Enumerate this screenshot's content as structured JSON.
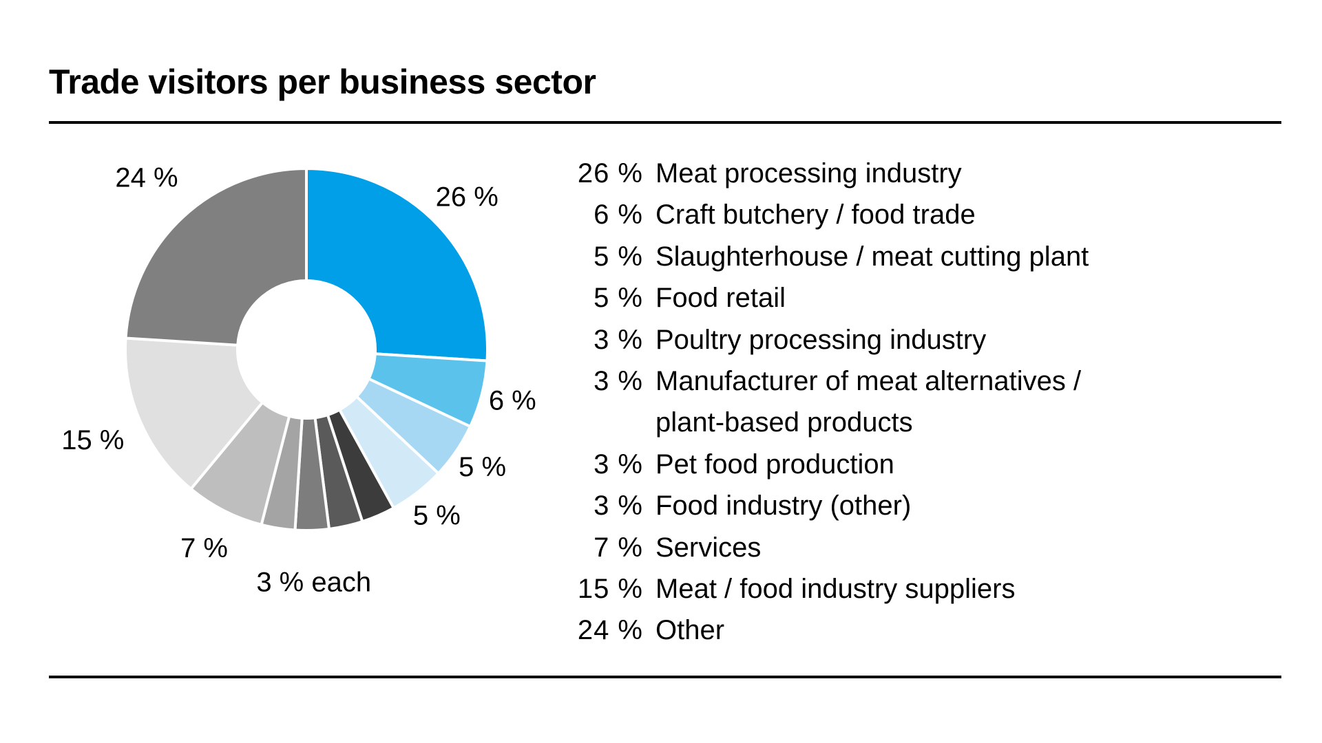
{
  "chart_data": {
    "type": "pie",
    "variant": "donut",
    "title": "Trade visitors per business sector",
    "colors": {
      "primary": "#009fe8",
      "slices": [
        "#009fe8",
        "#5bc2ec",
        "#a6d8f3",
        "#d2e9f8",
        "#3c3c3c",
        "#5a5a5a",
        "#7d7d7d",
        "#a4a4a4",
        "#bebebe",
        "#e0e0e0",
        "#808080"
      ]
    },
    "slices": [
      {
        "label": "Meat processing industry",
        "value": 26
      },
      {
        "label": "Craft butchery / food trade",
        "value": 6
      },
      {
        "label": "Slaughterhouse / meat cutting plant",
        "value": 5
      },
      {
        "label": "Food retail",
        "value": 5
      },
      {
        "label": "Poultry processing industry",
        "value": 3
      },
      {
        "label": "Manufacturer of meat alternatives / plant-based products",
        "value": 3
      },
      {
        "label": "Pet food production",
        "value": 3
      },
      {
        "label": "Food industry (other)",
        "value": 3
      },
      {
        "label": "Services",
        "value": 7
      },
      {
        "label": "Meat / food industry suppliers",
        "value": 15
      },
      {
        "label": "Other",
        "value": 24
      }
    ],
    "data_labels": [
      {
        "text": "26 %",
        "slice": 0
      },
      {
        "text": "6 %",
        "slice": 1
      },
      {
        "text": "5 %",
        "slice": 2
      },
      {
        "text": "5 %",
        "slice": 3
      },
      {
        "text": "3 % each",
        "slice": 6
      },
      {
        "text": "7 %",
        "slice": 8
      },
      {
        "text": "15 %",
        "slice": 9
      },
      {
        "text": "24 %",
        "slice": 10
      }
    ],
    "legend": {
      "position": "right",
      "entries": [
        {
          "pct": "26 %",
          "label": "Meat processing industry"
        },
        {
          "pct": "6 %",
          "label": "Craft butchery / food trade"
        },
        {
          "pct": "5 %",
          "label": "Slaughterhouse / meat cutting plant"
        },
        {
          "pct": "5 %",
          "label": "Food retail"
        },
        {
          "pct": "3 %",
          "label": "Poultry processing industry"
        },
        {
          "pct": "3 %",
          "label": "Manufacturer of meat alternatives /"
        },
        {
          "pct": "",
          "label": "plant-based products"
        },
        {
          "pct": "3 %",
          "label": "Pet food production"
        },
        {
          "pct": "3 %",
          "label": "Food industry (other)"
        },
        {
          "pct": "7 %",
          "label": "Services"
        },
        {
          "pct": "15 %",
          "label": "Meat / food industry suppliers"
        },
        {
          "pct": "24 %",
          "label": "Other"
        }
      ]
    }
  }
}
